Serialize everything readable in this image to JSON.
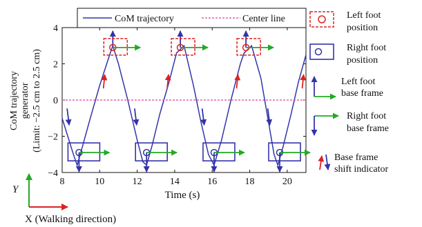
{
  "chart_data": {
    "type": "line",
    "xlabel": "Time (s)",
    "ylabel_lines": [
      "CoM trajectory",
      "generator",
      "(Limit: −2.5 cm to 2.5 cm)"
    ],
    "xlim": [
      8,
      21
    ],
    "ylim": [
      -4,
      4
    ],
    "x_ticks": [
      8,
      10,
      12,
      14,
      16,
      18,
      20
    ],
    "y_ticks": [
      -4,
      -2,
      0,
      2,
      4
    ],
    "x_tick_labels": [
      "8",
      "10",
      "12",
      "14",
      "16",
      "18",
      "20"
    ],
    "y_tick_labels": [
      "−4",
      "−2",
      "0",
      "2",
      "4"
    ],
    "grid": false,
    "legend_position": "top",
    "series": [
      {
        "name": "CoM trajectory",
        "color": "#3333aa",
        "style": "solid",
        "x": [
          8.0,
          8.3,
          8.6,
          8.8,
          9.1,
          9.5,
          10.0,
          10.5,
          10.7,
          11.0,
          11.5,
          12.0,
          12.3,
          12.5,
          12.8,
          13.2,
          13.7,
          14.1,
          14.5,
          15.0,
          15.4,
          15.8,
          16.1,
          16.5,
          17.0,
          17.5,
          17.7,
          18.1,
          18.6,
          19.0,
          19.3,
          19.5,
          19.8,
          20.2,
          20.6,
          21.0
        ],
        "y": [
          -1.0,
          -2.0,
          -3.0,
          -3.6,
          -2.5,
          -1.0,
          0.8,
          2.4,
          3.0,
          2.0,
          0.0,
          -2.2,
          -3.4,
          -3.6,
          -2.5,
          -0.8,
          1.0,
          2.6,
          3.0,
          0.8,
          -1.2,
          -3.0,
          -3.6,
          -2.2,
          0.0,
          2.0,
          2.6,
          3.0,
          1.2,
          -1.2,
          -3.0,
          -3.6,
          -2.5,
          -0.8,
          1.0,
          2.5
        ]
      },
      {
        "name": "Center line",
        "color": "#e0409a",
        "style": "dashed",
        "x": [
          8,
          21
        ],
        "y": [
          0,
          0
        ]
      }
    ],
    "left_foot_positions": [
      {
        "x": 10.7,
        "y": 2.9
      },
      {
        "x": 14.3,
        "y": 2.9
      },
      {
        "x": 17.8,
        "y": 2.9
      }
    ],
    "right_foot_positions": [
      {
        "x": 8.9,
        "y": -2.9
      },
      {
        "x": 12.5,
        "y": -2.9
      },
      {
        "x": 16.1,
        "y": -2.9
      },
      {
        "x": 19.6,
        "y": -2.9
      }
    ],
    "shift_indicators_up": [
      {
        "x": 10.2,
        "y": 1.1
      },
      {
        "x": 13.6,
        "y": 1.1
      },
      {
        "x": 17.3,
        "y": 1.1
      },
      {
        "x": 20.8,
        "y": 1.1
      }
    ],
    "shift_indicators_down": [
      {
        "x": 8.3,
        "y": -1.0
      },
      {
        "x": 11.9,
        "y": -1.0
      },
      {
        "x": 15.5,
        "y": -1.0
      },
      {
        "x": 19.0,
        "y": -1.0
      }
    ]
  },
  "legend": {
    "com_label": "CoM trajectory",
    "center_label": "Center line",
    "left_foot_label": [
      "Left foot",
      "position"
    ],
    "right_foot_label": [
      "Right foot",
      "position"
    ],
    "left_base_label": [
      "Left foot",
      "base frame"
    ],
    "right_base_label": [
      "Right foot",
      "base frame"
    ],
    "shift_label": [
      "Base frame",
      "shift indicator"
    ]
  },
  "axes_glyph": {
    "y_label": "Y",
    "x_label": "X (Walking direction)"
  },
  "colors": {
    "com": "#3333aa",
    "center": "#e0409a",
    "left_foot": "#e02020",
    "right_foot": "#3333aa",
    "green": "#22aa22",
    "red_arrow": "#e02020",
    "blue_arrow": "#3333aa"
  }
}
